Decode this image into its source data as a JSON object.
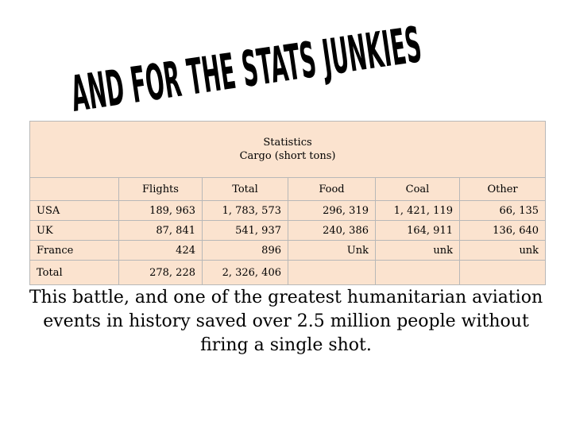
{
  "title": "AND FOR THE STATS JUNKIES",
  "table": {
    "header_line1": "Statistics",
    "header_line2": "Cargo (short tons)",
    "columns": [
      "Flights",
      "Total",
      "Food",
      "Coal",
      "Other"
    ],
    "rows": [
      {
        "label": "USA",
        "values": [
          "189, 963",
          "1, 783, 573",
          "296, 319",
          "1, 421, 119",
          "66, 135"
        ]
      },
      {
        "label": "UK",
        "values": [
          "87, 841",
          "541, 937",
          "240, 386",
          "164, 911",
          "136, 640"
        ]
      },
      {
        "label": "France",
        "values": [
          "424",
          "896",
          "Unk",
          "unk",
          "unk"
        ]
      },
      {
        "label": "Total",
        "values": [
          "278, 228",
          "2, 326, 406",
          "",
          "",
          ""
        ]
      }
    ]
  },
  "caption": "This battle, and one of the greatest humanitarian aviation events in history saved over 2.5 million people without firing a single shot."
}
